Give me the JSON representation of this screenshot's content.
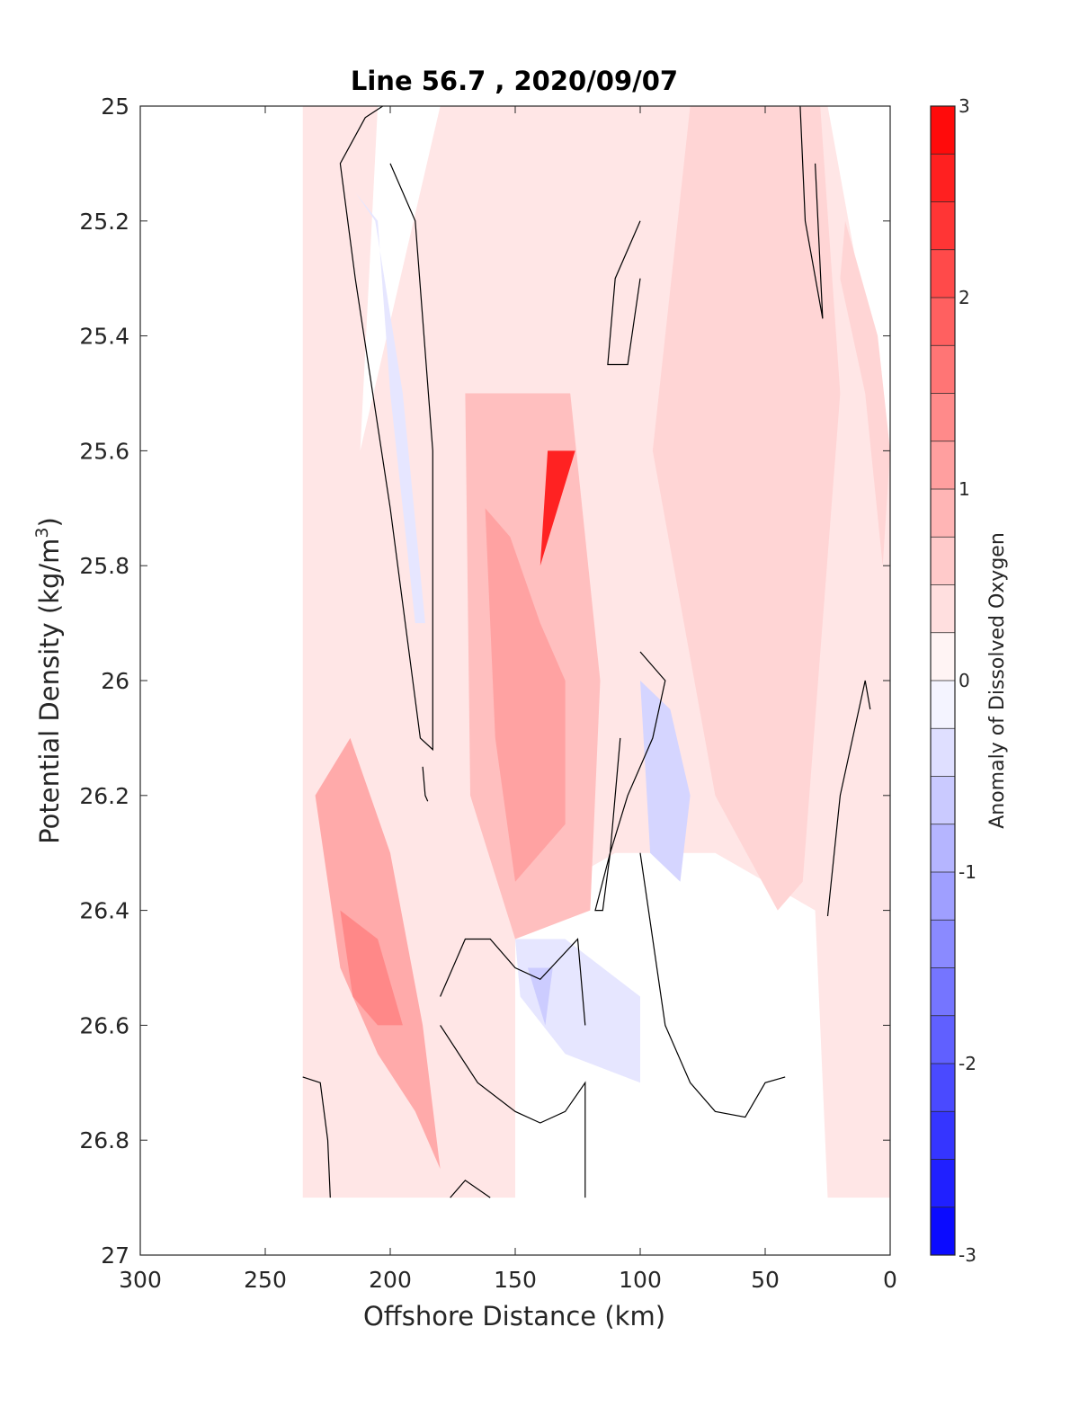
{
  "chart_data": {
    "type": "heatmap",
    "subtype": "filled-contour",
    "title": "Line 56.7 , 2020/09/07",
    "xlabel": "Offshore Distance (km)",
    "ylabel_main": "Potential Density (kg/m",
    "ylabel_sup": "3",
    "ylabel_close": ")",
    "colorbar_label": "Anomaly of Dissolved Oxygen",
    "xlim": [
      300,
      0
    ],
    "x_reversed": true,
    "ylim": [
      25,
      27
    ],
    "y_reversed": true,
    "x_ticks": [
      "300",
      "250",
      "200",
      "150",
      "100",
      "50",
      "0"
    ],
    "y_ticks": [
      "25",
      "25.2",
      "25.4",
      "25.6",
      "25.8",
      "26",
      "26.2",
      "26.4",
      "26.6",
      "26.8",
      "27"
    ],
    "colorbar_ticks": [
      "3",
      "2",
      "1",
      "0",
      "-1",
      "-2",
      "-3"
    ],
    "colorbar_range": [
      -3,
      3
    ],
    "colorbar_levels": 24,
    "colormap": {
      "negative": "#0000ff",
      "zero": "#ffffff",
      "positive": "#ff0000"
    },
    "grid": false,
    "data_extent_x": [
      235,
      0
    ],
    "data_extent_y": [
      25,
      26.9
    ],
    "regions": [
      {
        "x": [
          235,
          205,
          212,
          180,
          160,
          132,
          112,
          85,
          40,
          25,
          0,
          0,
          10,
          25,
          30,
          70,
          110,
          150,
          150,
          180,
          200,
          235
        ],
        "y": [
          25.0,
          25.0,
          25.6,
          25.0,
          25.0,
          25.0,
          25.0,
          25.0,
          25.0,
          25.0,
          25.6,
          26.9,
          26.9,
          26.9,
          26.4,
          26.3,
          26.3,
          26.4,
          26.9,
          26.9,
          26.9,
          26.9
        ],
        "value": 0.3
      },
      {
        "x": [
          214,
          205,
          200,
          190,
          186,
          195,
          206
        ],
        "y": [
          25.15,
          25.2,
          25.5,
          25.9,
          25.9,
          25.5,
          25.2
        ],
        "value": -0.3
      },
      {
        "x": [
          170,
          150,
          128,
          116,
          120,
          150,
          168
        ],
        "y": [
          25.5,
          25.5,
          25.5,
          26.0,
          26.4,
          26.45,
          26.2
        ],
        "value": 0.75
      },
      {
        "x": [
          162,
          152,
          140,
          130,
          130,
          150,
          158
        ],
        "y": [
          25.7,
          25.75,
          25.9,
          26.0,
          26.25,
          26.35,
          26.1
        ],
        "value": 1.1
      },
      {
        "x": [
          150,
          137,
          140,
          126
        ],
        "y": [
          25.6,
          25.6,
          25.8,
          25.6
        ],
        "value": 2.6
      },
      {
        "x": [
          230,
          216,
          200,
          187,
          180,
          190,
          205,
          220
        ],
        "y": [
          26.2,
          26.1,
          26.3,
          26.6,
          26.85,
          26.75,
          26.65,
          26.5
        ],
        "value": 1.0
      },
      {
        "x": [
          220,
          205,
          195,
          205,
          215
        ],
        "y": [
          26.4,
          26.45,
          26.6,
          26.6,
          26.55
        ],
        "value": 1.4
      },
      {
        "x": [
          100,
          88,
          80,
          84,
          96
        ],
        "y": [
          26.0,
          26.05,
          26.2,
          26.35,
          26.3
        ],
        "value": -0.5
      },
      {
        "x": [
          150,
          130,
          100,
          100,
          130,
          148
        ],
        "y": [
          26.45,
          26.45,
          26.55,
          26.7,
          26.65,
          26.55
        ],
        "value": -0.3
      },
      {
        "x": [
          145,
          135,
          138
        ],
        "y": [
          26.5,
          26.5,
          26.6
        ],
        "value": -0.6
      },
      {
        "x": [
          80,
          50,
          28,
          20,
          35,
          45,
          70,
          95
        ],
        "y": [
          25.0,
          25.0,
          25.0,
          25.5,
          26.35,
          26.4,
          26.2,
          25.6
        ],
        "value": 0.5
      },
      {
        "x": [
          20,
          10,
          3,
          0,
          5,
          18
        ],
        "y": [
          25.3,
          25.5,
          25.8,
          25.6,
          25.4,
          25.2
        ],
        "value": 0.5
      }
    ],
    "zero_contours": [
      {
        "x": [
          203,
          210,
          220,
          214,
          200,
          188,
          183,
          183,
          190,
          200
        ],
        "y": [
          25.0,
          25.02,
          25.1,
          25.3,
          25.7,
          26.1,
          26.12,
          25.6,
          25.2,
          25.1
        ]
      },
      {
        "x": [
          100,
          90,
          95,
          105,
          112,
          115,
          118,
          112,
          108
        ],
        "y": [
          25.95,
          26.0,
          26.1,
          26.2,
          26.3,
          26.4,
          26.4,
          26.3,
          26.1
        ]
      },
      {
        "x": [
          180,
          170,
          160,
          150,
          140,
          125,
          122
        ],
        "y": [
          26.55,
          26.45,
          26.45,
          26.5,
          26.52,
          26.45,
          26.6
        ]
      },
      {
        "x": [
          180,
          165,
          150,
          140,
          130,
          122,
          122
        ],
        "y": [
          26.6,
          26.7,
          26.75,
          26.77,
          26.75,
          26.7,
          26.9
        ]
      },
      {
        "x": [
          100,
          110,
          113,
          105,
          100
        ],
        "y": [
          25.2,
          25.3,
          25.45,
          25.45,
          25.3
        ]
      },
      {
        "x": [
          36,
          34,
          27,
          30
        ],
        "y": [
          25.0,
          25.2,
          25.37,
          25.1
        ]
      },
      {
        "x": [
          42,
          50,
          58,
          70,
          80,
          90,
          95,
          100
        ],
        "y": [
          26.69,
          26.7,
          26.76,
          26.75,
          26.7,
          26.6,
          26.45,
          26.3
        ]
      },
      {
        "x": [
          235,
          228,
          225,
          224
        ],
        "y": [
          26.69,
          26.7,
          26.8,
          26.9
        ]
      },
      {
        "x": [
          25,
          20,
          10,
          8
        ],
        "y": [
          26.41,
          26.2,
          26.0,
          26.05
        ]
      },
      {
        "x": [
          176,
          170,
          160
        ],
        "y": [
          26.9,
          26.87,
          26.9
        ]
      },
      {
        "x": [
          187,
          186,
          185
        ],
        "y": [
          26.15,
          26.2,
          26.21
        ]
      }
    ]
  }
}
